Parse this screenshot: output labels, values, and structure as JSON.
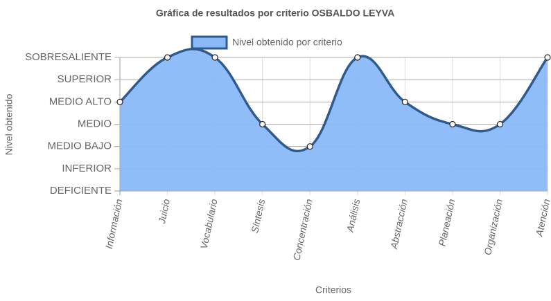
{
  "chart_data": {
    "type": "line",
    "title": "Gráfica de resultados por criterio OSBALDO LEYVA",
    "x_label": "Criterios",
    "y_label": "Nivel obtenido",
    "categories": [
      "Información",
      "Juicio",
      "Vocabulario",
      "Síntesis",
      "Concentración",
      "Análisis",
      "Abstracción",
      "Planeación",
      "Organización",
      "Atención"
    ],
    "series": [
      {
        "name": "Nivel obtenido por criterio",
        "color": "#2e5b8f",
        "fill": "#8ab9f7",
        "values": [
          4,
          6,
          6,
          3,
          2,
          6,
          4,
          3,
          3,
          6
        ]
      }
    ],
    "ylim": [
      0,
      6
    ],
    "yticks": [
      {
        "value": 0,
        "label": "DEFICIENTE"
      },
      {
        "value": 1,
        "label": "INFERIOR"
      },
      {
        "value": 2,
        "label": "MEDIO BAJO"
      },
      {
        "value": 3,
        "label": "MEDIO"
      },
      {
        "value": 4,
        "label": "MEDIO ALTO"
      },
      {
        "value": 5,
        "label": "SUPERIOR"
      },
      {
        "value": 6,
        "label": "SOBRESALIENTE"
      }
    ],
    "grid": true,
    "legend": "top"
  }
}
